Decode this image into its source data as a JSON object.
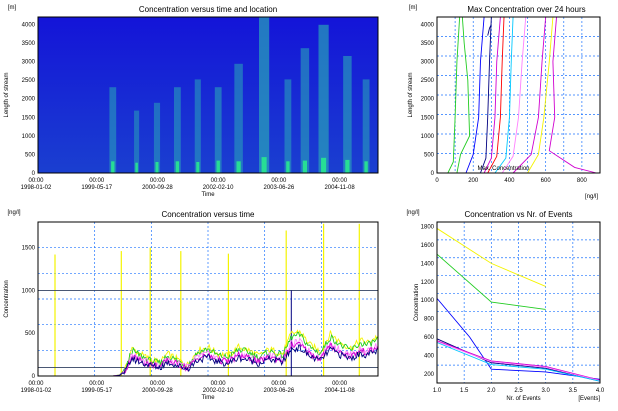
{
  "colors": {
    "frame": "#000000",
    "grid": "#1e74ff",
    "title": "#000000",
    "heat_low": "#1414d8",
    "heat_mid": "#2aa6b8",
    "heat_high": "#28e890",
    "yellow": "#f4f400",
    "magenta": "#d000d0",
    "green": "#22cc22",
    "pink": "#ff80ff",
    "navy": "#000080",
    "blue": "#0000ff",
    "red": "#ff0000",
    "cyan": "#00c8ff"
  },
  "time_ticks": [
    {
      "t1": "00:00",
      "t2": "1998-01-02"
    },
    {
      "t1": "00:00",
      "t2": "1999-05-17"
    },
    {
      "t1": "00:00",
      "t2": "2000-09-28"
    },
    {
      "t1": "00:00",
      "t2": "2002-02-10"
    },
    {
      "t1": "00:00",
      "t2": "2003-06-26"
    },
    {
      "t1": "00:00",
      "t2": "2004-11-08"
    }
  ],
  "chart_data": [
    {
      "type": "heatmap",
      "title": "Concentration versus time and location",
      "unit": "[m]",
      "xlabel": "Time",
      "ylabel": "Length of stream",
      "ylim": [
        0,
        4200
      ],
      "y_ticks": [
        "0",
        "500",
        "1000",
        "1500",
        "2000",
        "2500",
        "3000",
        "3500",
        "4000"
      ],
      "hot_bands": [
        {
          "t": 0.22,
          "w": 0.02,
          "reach": 0.55,
          "level": 0.55
        },
        {
          "t": 0.29,
          "w": 0.015,
          "reach": 0.4,
          "level": 0.45
        },
        {
          "t": 0.35,
          "w": 0.018,
          "reach": 0.45,
          "level": 0.5
        },
        {
          "t": 0.41,
          "w": 0.02,
          "reach": 0.55,
          "level": 0.55
        },
        {
          "t": 0.47,
          "w": 0.018,
          "reach": 0.6,
          "level": 0.5
        },
        {
          "t": 0.53,
          "w": 0.02,
          "reach": 0.55,
          "level": 0.6
        },
        {
          "t": 0.59,
          "w": 0.025,
          "reach": 0.7,
          "level": 0.55
        },
        {
          "t": 0.665,
          "w": 0.03,
          "reach": 1.0,
          "level": 0.85
        },
        {
          "t": 0.735,
          "w": 0.02,
          "reach": 0.6,
          "level": 0.55
        },
        {
          "t": 0.785,
          "w": 0.025,
          "reach": 0.8,
          "level": 0.6
        },
        {
          "t": 0.84,
          "w": 0.03,
          "reach": 0.95,
          "level": 0.8
        },
        {
          "t": 0.91,
          "w": 0.025,
          "reach": 0.75,
          "level": 0.65
        },
        {
          "t": 0.965,
          "w": 0.02,
          "reach": 0.6,
          "level": 0.55
        }
      ]
    },
    {
      "type": "line",
      "title": "Max Concentration over 24 hours",
      "unit_y": "[m]",
      "unit_x": "[ng/l]",
      "xlabel": "Max. Concentration",
      "ylabel": "Length of stream",
      "xlim": [
        0,
        900
      ],
      "ylim": [
        0,
        4200
      ],
      "x_ticks": [
        "0",
        "200",
        "400",
        "600",
        "800"
      ],
      "y_ticks": [
        "0",
        "500",
        "1000",
        "1500",
        "2000",
        "2500",
        "3000",
        "3500",
        "4000"
      ],
      "series": [
        {
          "color": "green",
          "points": [
            [
              60,
              0
            ],
            [
              90,
              300
            ],
            [
              100,
              1500
            ],
            [
              110,
              3000
            ],
            [
              120,
              3800
            ],
            [
              125,
              4200
            ]
          ]
        },
        {
          "color": "green",
          "points": [
            [
              110,
              0
            ],
            [
              130,
              500
            ],
            [
              180,
              1000
            ],
            [
              170,
              2500
            ],
            [
              150,
              3500
            ],
            [
              140,
              4200
            ]
          ]
        },
        {
          "color": "blue",
          "points": [
            [
              160,
              0
            ],
            [
              200,
              500
            ],
            [
              230,
              1500
            ],
            [
              240,
              3000
            ],
            [
              260,
              4200
            ]
          ]
        },
        {
          "color": "navy",
          "points": [
            [
              240,
              0
            ],
            [
              270,
              400
            ],
            [
              280,
              1500
            ],
            [
              290,
              3000
            ],
            [
              300,
              4200
            ]
          ]
        },
        {
          "color": "magenta",
          "points": [
            [
              260,
              0
            ],
            [
              300,
              400
            ],
            [
              320,
              1500
            ],
            [
              330,
              3000
            ],
            [
              350,
              4200
            ]
          ]
        },
        {
          "color": "red",
          "points": [
            [
              280,
              0
            ],
            [
              330,
              450
            ],
            [
              350,
              1500
            ],
            [
              360,
              3000
            ],
            [
              370,
              4200
            ]
          ]
        },
        {
          "color": "cyan",
          "points": [
            [
              320,
              0
            ],
            [
              380,
              400
            ],
            [
              400,
              1500
            ],
            [
              410,
              3000
            ],
            [
              420,
              4200
            ]
          ]
        },
        {
          "color": "pink",
          "points": [
            [
              360,
              0
            ],
            [
              420,
              450
            ],
            [
              450,
              1500
            ],
            [
              470,
              3000
            ],
            [
              490,
              4200
            ]
          ]
        },
        {
          "color": "magenta",
          "points": [
            [
              420,
              0
            ],
            [
              520,
              500
            ],
            [
              560,
              1500
            ],
            [
              580,
              3000
            ],
            [
              600,
              4200
            ]
          ]
        },
        {
          "color": "yellow",
          "points": [
            [
              500,
              0
            ],
            [
              560,
              500
            ],
            [
              590,
              1500
            ],
            [
              620,
              3000
            ],
            [
              640,
              4200
            ]
          ]
        },
        {
          "color": "magenta",
          "points": [
            [
              880,
              0
            ],
            [
              760,
              150
            ],
            [
              620,
              600
            ],
            [
              650,
              1500
            ],
            [
              640,
              3000
            ],
            [
              660,
              4200
            ]
          ]
        },
        {
          "color": "navy",
          "points": [
            [
              280,
              3700
            ],
            [
              290,
              3900
            ],
            [
              300,
              4000
            ]
          ]
        }
      ]
    },
    {
      "type": "line",
      "title": "Concentration versus time",
      "unit": "[ng/l]",
      "xlabel": "Time",
      "ylabel": "Concentration",
      "ylim": [
        0,
        1800
      ],
      "y_ticks": [
        "0",
        "500",
        "1000",
        "1500"
      ],
      "threshold_lines": [
        1000,
        100
      ],
      "spikes": [
        {
          "t": 0.05,
          "v": 1420
        },
        {
          "t": 0.245,
          "v": 1460
        },
        {
          "t": 0.33,
          "v": 1500
        },
        {
          "t": 0.42,
          "v": 1460
        },
        {
          "t": 0.56,
          "v": 1430
        },
        {
          "t": 0.73,
          "v": 1700
        },
        {
          "t": 0.84,
          "v": 1780
        },
        {
          "t": 0.945,
          "v": 1780
        }
      ],
      "series": [
        {
          "color": "yellow",
          "scale": 1.3
        },
        {
          "color": "green",
          "scale": 1.2
        },
        {
          "color": "pink",
          "scale": 1.0
        },
        {
          "color": "magenta",
          "scale": 0.92
        },
        {
          "color": "navy",
          "scale": 0.82
        }
      ],
      "base_profile": [
        [
          0.0,
          0
        ],
        [
          0.22,
          0
        ],
        [
          0.24,
          10
        ],
        [
          0.26,
          80
        ],
        [
          0.275,
          250
        ],
        [
          0.3,
          200
        ],
        [
          0.33,
          150
        ],
        [
          0.36,
          120
        ],
        [
          0.38,
          200
        ],
        [
          0.41,
          150
        ],
        [
          0.44,
          100
        ],
        [
          0.47,
          230
        ],
        [
          0.5,
          260
        ],
        [
          0.53,
          200
        ],
        [
          0.56,
          180
        ],
        [
          0.59,
          260
        ],
        [
          0.62,
          230
        ],
        [
          0.65,
          180
        ],
        [
          0.68,
          240
        ],
        [
          0.72,
          200
        ],
        [
          0.745,
          380
        ],
        [
          0.77,
          400
        ],
        [
          0.8,
          280
        ],
        [
          0.83,
          220
        ],
        [
          0.86,
          380
        ],
        [
          0.89,
          300
        ],
        [
          0.92,
          250
        ],
        [
          0.95,
          320
        ],
        [
          0.97,
          300
        ],
        [
          1.0,
          360
        ]
      ],
      "peak_marker": {
        "t": 0.745,
        "v": 1000
      }
    },
    {
      "type": "line",
      "title": "Concentration vs Nr. of Events",
      "unit_y": "[ng/l]",
      "unit_x": "[Events]",
      "xlabel": "Nr. of Events",
      "ylabel": "Concentration",
      "xlim": [
        1.0,
        4.0
      ],
      "ylim": [
        100,
        1850
      ],
      "x_ticks": [
        "1.0",
        "1.5",
        "2.0",
        "2.5",
        "3.0",
        "3.5",
        "4.0"
      ],
      "y_ticks": [
        "200",
        "400",
        "600",
        "800",
        "1000",
        "1200",
        "1400",
        "1600",
        "1800"
      ],
      "series": [
        {
          "color": "yellow",
          "points": [
            [
              1,
              1780
            ],
            [
              2,
              1400
            ],
            [
              3,
              1150
            ]
          ]
        },
        {
          "color": "green",
          "points": [
            [
              1,
              1500
            ],
            [
              2,
              980
            ],
            [
              3,
              900
            ]
          ]
        },
        {
          "color": "blue",
          "points": [
            [
              1,
              1020
            ],
            [
              1.6,
              600
            ],
            [
              2,
              250
            ],
            [
              3,
              220
            ],
            [
              4,
              140
            ]
          ]
        },
        {
          "color": "navy",
          "points": [
            [
              1,
              580
            ],
            [
              2,
              320
            ],
            [
              3,
              260
            ],
            [
              4,
              120
            ]
          ]
        },
        {
          "color": "magenta",
          "points": [
            [
              1,
              560
            ],
            [
              2,
              340
            ],
            [
              3,
              280
            ],
            [
              4,
              130
            ]
          ]
        },
        {
          "color": "pink",
          "points": [
            [
              1,
              550
            ],
            [
              2,
              330
            ],
            [
              3,
              270
            ],
            [
              4,
              125
            ]
          ]
        },
        {
          "color": "cyan",
          "points": [
            [
              1,
              540
            ],
            [
              2,
              300
            ],
            [
              3,
              250
            ],
            [
              4,
              120
            ]
          ]
        }
      ]
    }
  ]
}
